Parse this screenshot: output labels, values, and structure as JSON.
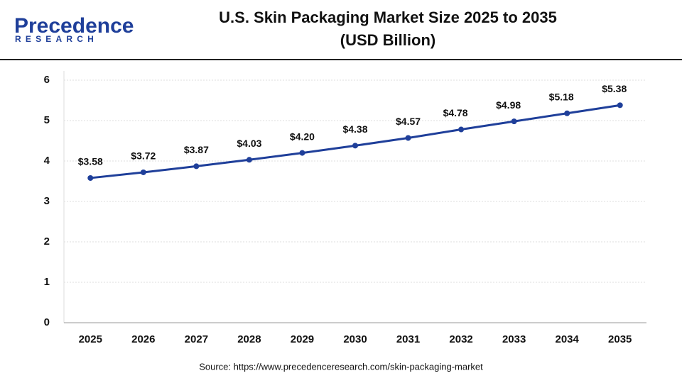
{
  "logo": {
    "name": "Precedence",
    "tagline": "RESEARCH"
  },
  "chart_data": {
    "type": "line",
    "title": "U.S. Skin Packaging Market Size 2025 to 2035",
    "subtitle": "(USD Billion)",
    "categories": [
      "2025",
      "2026",
      "2027",
      "2028",
      "2029",
      "2030",
      "2031",
      "2032",
      "2033",
      "2034",
      "2035"
    ],
    "values": [
      3.58,
      3.72,
      3.87,
      4.03,
      4.2,
      4.38,
      4.57,
      4.78,
      4.98,
      5.18,
      5.38
    ],
    "value_labels": [
      "$3.58",
      "$3.72",
      "$3.87",
      "$4.03",
      "$4.20",
      "$4.38",
      "$4.57",
      "$4.78",
      "$4.98",
      "$5.18",
      "$5.38"
    ],
    "color": "#1f3f9a",
    "ylim": [
      0,
      6
    ],
    "yticks": [
      0,
      1,
      2,
      3,
      4,
      5,
      6
    ],
    "grid": true,
    "source": "Source: https://www.precedenceresearch.com/skin-packaging-market"
  }
}
